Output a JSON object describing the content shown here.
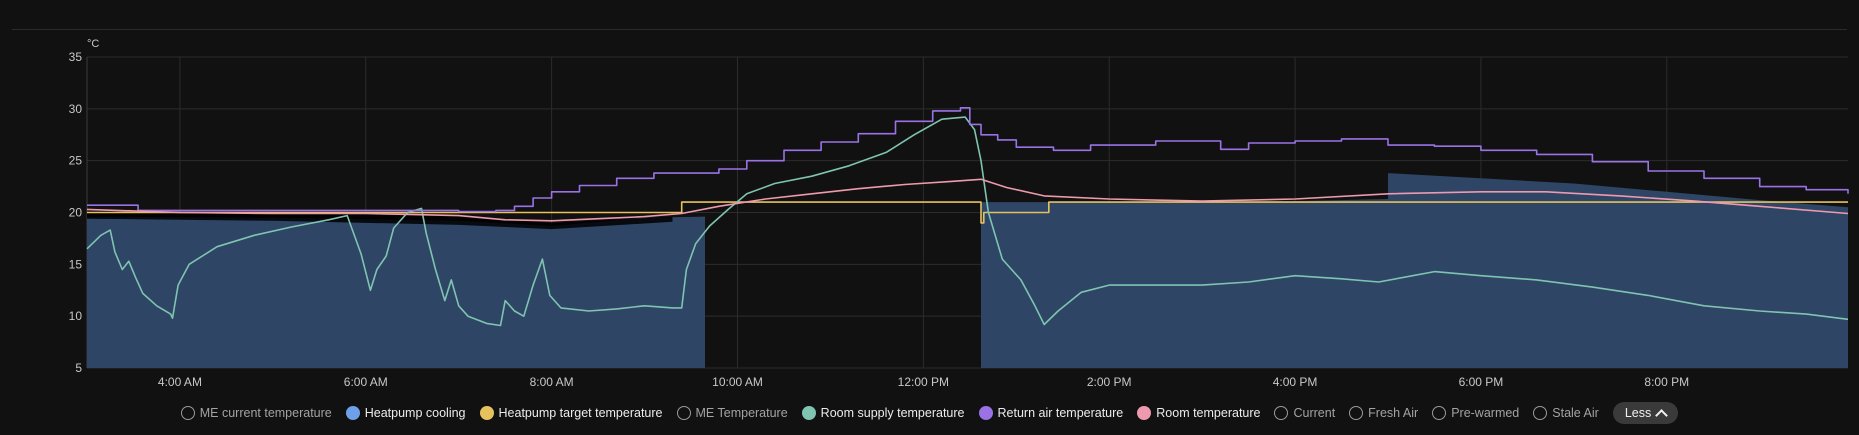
{
  "chart_data": {
    "type": "line",
    "unit_label": "°C",
    "ylim": [
      5,
      35
    ],
    "yticks": [
      5,
      10,
      15,
      20,
      25,
      30,
      35
    ],
    "xlim_hours": [
      3.0,
      21.95
    ],
    "xticks": [
      {
        "hour": 4,
        "label": "4:00 AM"
      },
      {
        "hour": 6,
        "label": "6:00 AM"
      },
      {
        "hour": 8,
        "label": "8:00 AM"
      },
      {
        "hour": 10,
        "label": "10:00 AM"
      },
      {
        "hour": 12,
        "label": "12:00 PM"
      },
      {
        "hour": 14,
        "label": "2:00 PM"
      },
      {
        "hour": 16,
        "label": "4:00 PM"
      },
      {
        "hour": 18,
        "label": "6:00 PM"
      },
      {
        "hour": 20,
        "label": "8:00 PM"
      }
    ],
    "grid": true,
    "series": [
      {
        "name": "Heatpump cooling",
        "kind": "area",
        "color": "#2e4566",
        "segments": [
          [
            [
              3.0,
              19.6
            ],
            [
              5.0,
              19.5
            ],
            [
              7.0,
              19.2
            ],
            [
              8.0,
              18.7
            ],
            [
              9.0,
              19.5
            ],
            [
              9.65,
              19.6
            ]
          ],
          [
            [
              12.62,
              21.0
            ],
            [
              14.5,
              21.0
            ],
            [
              16.0,
              21.1
            ],
            [
              17.0,
              21.3
            ]
          ],
          [
            [
              17.0,
              23.8
            ],
            [
              18.0,
              23.3
            ],
            [
              19.0,
              22.8
            ],
            [
              20.0,
              22.0
            ],
            [
              21.0,
              21.2
            ],
            [
              21.95,
              20.5
            ]
          ]
        ]
      },
      {
        "name": "Heatpump target temperature",
        "kind": "step",
        "color": "#e6c25f",
        "points": [
          [
            3.0,
            20.0
          ],
          [
            9.4,
            20.0
          ],
          [
            9.4,
            21.0
          ],
          [
            12.62,
            21.0
          ],
          [
            12.62,
            19.0
          ],
          [
            12.65,
            20.0
          ],
          [
            13.35,
            20.0
          ],
          [
            13.35,
            21.0
          ],
          [
            21.95,
            21.0
          ]
        ]
      },
      {
        "name": "Room supply temperature",
        "kind": "line",
        "color": "#7fc4b0",
        "points": [
          [
            3.0,
            16.5
          ],
          [
            3.15,
            17.8
          ],
          [
            3.25,
            18.3
          ],
          [
            3.3,
            16.2
          ],
          [
            3.38,
            14.5
          ],
          [
            3.45,
            15.3
          ],
          [
            3.52,
            13.8
          ],
          [
            3.6,
            12.2
          ],
          [
            3.75,
            11.0
          ],
          [
            3.9,
            10.2
          ],
          [
            3.92,
            9.8
          ],
          [
            3.98,
            13.0
          ],
          [
            4.1,
            15.0
          ],
          [
            4.4,
            16.7
          ],
          [
            4.8,
            17.8
          ],
          [
            5.2,
            18.6
          ],
          [
            5.6,
            19.3
          ],
          [
            5.8,
            19.7
          ],
          [
            5.95,
            16.0
          ],
          [
            6.05,
            12.5
          ],
          [
            6.12,
            14.5
          ],
          [
            6.22,
            15.8
          ],
          [
            6.3,
            18.5
          ],
          [
            6.45,
            20.0
          ],
          [
            6.6,
            20.4
          ],
          [
            6.65,
            18.0
          ],
          [
            6.75,
            14.5
          ],
          [
            6.85,
            11.5
          ],
          [
            6.92,
            13.5
          ],
          [
            7.0,
            11.0
          ],
          [
            7.1,
            10.0
          ],
          [
            7.3,
            9.3
          ],
          [
            7.45,
            9.1
          ],
          [
            7.5,
            11.5
          ],
          [
            7.6,
            10.5
          ],
          [
            7.7,
            10.0
          ],
          [
            7.8,
            13.0
          ],
          [
            7.9,
            15.5
          ],
          [
            7.98,
            12.0
          ],
          [
            8.1,
            10.8
          ],
          [
            8.4,
            10.5
          ],
          [
            8.7,
            10.7
          ],
          [
            9.0,
            11.0
          ],
          [
            9.3,
            10.8
          ],
          [
            9.4,
            10.8
          ],
          [
            9.45,
            14.5
          ],
          [
            9.55,
            17.0
          ],
          [
            9.7,
            18.7
          ],
          [
            9.9,
            20.3
          ],
          [
            10.1,
            21.8
          ],
          [
            10.4,
            22.8
          ],
          [
            10.8,
            23.5
          ],
          [
            11.2,
            24.5
          ],
          [
            11.6,
            25.8
          ],
          [
            11.9,
            27.5
          ],
          [
            12.2,
            29.0
          ],
          [
            12.45,
            29.2
          ],
          [
            12.55,
            28.0
          ],
          [
            12.62,
            25.0
          ],
          [
            12.7,
            20.0
          ],
          [
            12.85,
            15.5
          ],
          [
            13.05,
            13.5
          ],
          [
            13.2,
            11.0
          ],
          [
            13.3,
            9.2
          ],
          [
            13.45,
            10.5
          ],
          [
            13.7,
            12.3
          ],
          [
            14.0,
            13.0
          ],
          [
            14.5,
            13.0
          ],
          [
            15.0,
            13.0
          ],
          [
            15.5,
            13.3
          ],
          [
            16.0,
            13.9
          ],
          [
            16.5,
            13.6
          ],
          [
            16.9,
            13.3
          ],
          [
            17.2,
            13.8
          ],
          [
            17.5,
            14.3
          ],
          [
            18.0,
            13.9
          ],
          [
            18.6,
            13.5
          ],
          [
            19.2,
            12.8
          ],
          [
            19.8,
            12.0
          ],
          [
            20.4,
            11.0
          ],
          [
            21.0,
            10.5
          ],
          [
            21.5,
            10.2
          ],
          [
            21.95,
            9.7
          ]
        ]
      },
      {
        "name": "Return air temperature",
        "kind": "step",
        "color": "#9a72e6",
        "points": [
          [
            3.0,
            20.7
          ],
          [
            3.55,
            20.7
          ],
          [
            3.55,
            20.2
          ],
          [
            7.0,
            20.1
          ],
          [
            7.4,
            20.2
          ],
          [
            7.6,
            20.6
          ],
          [
            7.8,
            21.4
          ],
          [
            8.0,
            22.0
          ],
          [
            8.3,
            22.6
          ],
          [
            8.7,
            23.3
          ],
          [
            9.1,
            23.8
          ],
          [
            9.55,
            23.8
          ],
          [
            9.8,
            24.2
          ],
          [
            10.1,
            25.0
          ],
          [
            10.5,
            26.0
          ],
          [
            10.9,
            26.8
          ],
          [
            11.3,
            27.6
          ],
          [
            11.7,
            28.8
          ],
          [
            12.1,
            29.8
          ],
          [
            12.4,
            30.1
          ],
          [
            12.5,
            28.5
          ],
          [
            12.62,
            27.5
          ],
          [
            12.8,
            27.0
          ],
          [
            13.0,
            26.3
          ],
          [
            13.4,
            26.0
          ],
          [
            13.8,
            26.5
          ],
          [
            14.5,
            26.9
          ],
          [
            15.0,
            26.9
          ],
          [
            15.2,
            26.1
          ],
          [
            15.5,
            26.7
          ],
          [
            16.0,
            26.9
          ],
          [
            16.5,
            27.1
          ],
          [
            17.0,
            26.5
          ],
          [
            17.5,
            26.4
          ],
          [
            18.0,
            26.0
          ],
          [
            18.6,
            25.6
          ],
          [
            19.2,
            24.9
          ],
          [
            19.8,
            24.0
          ],
          [
            20.4,
            23.3
          ],
          [
            21.0,
            22.5
          ],
          [
            21.5,
            22.2
          ],
          [
            21.95,
            21.8
          ]
        ]
      },
      {
        "name": "Room temperature",
        "kind": "line",
        "color": "#ee9aae",
        "points": [
          [
            3.0,
            20.3
          ],
          [
            4.0,
            20.0
          ],
          [
            5.0,
            19.9
          ],
          [
            6.0,
            19.9
          ],
          [
            7.0,
            19.7
          ],
          [
            7.5,
            19.3
          ],
          [
            8.0,
            19.2
          ],
          [
            8.5,
            19.4
          ],
          [
            9.0,
            19.6
          ],
          [
            9.4,
            19.9
          ],
          [
            9.8,
            20.6
          ],
          [
            10.3,
            21.3
          ],
          [
            10.8,
            21.8
          ],
          [
            11.3,
            22.3
          ],
          [
            11.8,
            22.7
          ],
          [
            12.3,
            23.0
          ],
          [
            12.62,
            23.2
          ],
          [
            12.9,
            22.4
          ],
          [
            13.3,
            21.6
          ],
          [
            14.0,
            21.3
          ],
          [
            15.0,
            21.1
          ],
          [
            16.0,
            21.3
          ],
          [
            17.0,
            21.8
          ],
          [
            18.0,
            22.0
          ],
          [
            18.7,
            22.0
          ],
          [
            19.5,
            21.6
          ],
          [
            20.3,
            21.1
          ],
          [
            21.0,
            20.6
          ],
          [
            21.95,
            19.9
          ]
        ]
      },
      {
        "name": "Black band",
        "kind": "band",
        "color": "#000000",
        "upper": [
          [
            3.0,
            20.1
          ],
          [
            5.0,
            20.0
          ],
          [
            7.0,
            19.6
          ],
          [
            8.0,
            19.0
          ],
          [
            9.3,
            19.6
          ]
        ],
        "lower": [
          [
            3.0,
            19.4
          ],
          [
            5.0,
            19.2
          ],
          [
            7.0,
            18.8
          ],
          [
            8.0,
            18.4
          ],
          [
            9.3,
            19.1
          ]
        ]
      }
    ]
  },
  "legend": [
    {
      "label": "ME current temperature",
      "state": "off",
      "color": ""
    },
    {
      "label": "Heatpump cooling",
      "state": "on",
      "color": "#6ea0ea"
    },
    {
      "label": "Heatpump target temperature",
      "state": "on",
      "color": "#e6c25f"
    },
    {
      "label": "ME Temperature",
      "state": "off",
      "color": ""
    },
    {
      "label": "Room supply temperature",
      "state": "on",
      "color": "#7fc4b0"
    },
    {
      "label": "Return air temperature",
      "state": "on",
      "color": "#9a72e6"
    },
    {
      "label": "Room temperature",
      "state": "on",
      "color": "#ee9aae"
    },
    {
      "label": "Current",
      "state": "off",
      "color": ""
    },
    {
      "label": "Fresh Air",
      "state": "off",
      "color": ""
    },
    {
      "label": "Pre-warmed",
      "state": "off",
      "color": ""
    },
    {
      "label": "Stale Air",
      "state": "off",
      "color": ""
    }
  ],
  "less_button": {
    "label": "Less",
    "icon": "chevron-up-icon"
  }
}
